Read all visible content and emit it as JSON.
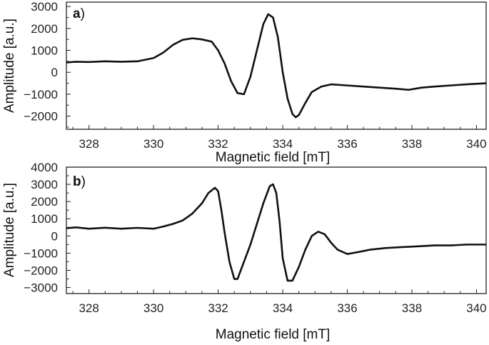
{
  "chart_data": [
    {
      "type": "line",
      "panel_label": "a",
      "xlabel": "Magnetic field [mT]",
      "ylabel": "Amplitude [a.u.]",
      "xlim": [
        327.3,
        340.3
      ],
      "ylim": [
        -2600,
        3200
      ],
      "xticks": [
        328,
        330,
        332,
        334,
        336,
        338,
        340
      ],
      "yticks": [
        -2000,
        -1000,
        0,
        1000,
        2000,
        3000
      ],
      "line_color": "#111111",
      "series": [
        {
          "x": [
            327.3,
            327.6,
            328.0,
            328.5,
            329.0,
            329.5,
            330.0,
            330.3,
            330.6,
            330.9,
            331.2,
            331.5,
            331.8,
            332.0,
            332.2,
            332.4,
            332.6,
            332.8,
            333.0,
            333.2,
            333.4,
            333.55,
            333.7,
            333.85,
            334.0,
            334.15,
            334.3,
            334.4,
            334.5,
            334.7,
            334.9,
            335.2,
            335.5,
            336.0,
            336.5,
            337.0,
            337.5,
            337.9,
            338.3,
            338.7,
            339.2,
            339.7,
            340.3
          ],
          "y": [
            450,
            480,
            470,
            500,
            480,
            500,
            650,
            900,
            1250,
            1480,
            1550,
            1500,
            1400,
            1000,
            400,
            -400,
            -950,
            -1000,
            -200,
            1000,
            2200,
            2650,
            2500,
            1600,
            0,
            -1200,
            -1900,
            -2050,
            -1950,
            -1400,
            -900,
            -650,
            -550,
            -600,
            -650,
            -700,
            -750,
            -800,
            -700,
            -650,
            -600,
            -550,
            -500
          ]
        }
      ]
    },
    {
      "type": "line",
      "panel_label": "b",
      "xlabel": "Magnetic field [mT]",
      "ylabel": "Amplitude [a.u.]",
      "xlim": [
        327.3,
        340.3
      ],
      "ylim": [
        -3350,
        4000
      ],
      "xticks": [
        328,
        330,
        332,
        334,
        336,
        338,
        340
      ],
      "yticks": [
        -3000,
        -2000,
        -1000,
        0,
        1000,
        2000,
        3000,
        4000
      ],
      "line_color": "#111111",
      "series": [
        {
          "x": [
            327.3,
            327.6,
            328.0,
            328.5,
            329.0,
            329.5,
            330.0,
            330.3,
            330.6,
            330.9,
            331.2,
            331.5,
            331.7,
            331.9,
            332.0,
            332.1,
            332.2,
            332.35,
            332.5,
            332.6,
            332.8,
            333.0,
            333.2,
            333.4,
            333.6,
            333.7,
            333.8,
            333.9,
            334.0,
            334.15,
            334.3,
            334.5,
            334.7,
            334.9,
            335.1,
            335.3,
            335.5,
            335.7,
            336.0,
            336.3,
            336.7,
            337.2,
            337.7,
            338.2,
            338.7,
            339.2,
            339.7,
            340.3
          ],
          "y": [
            450,
            500,
            420,
            480,
            420,
            470,
            420,
            550,
            700,
            900,
            1300,
            1900,
            2500,
            2800,
            2600,
            1500,
            200,
            -1500,
            -2500,
            -2500,
            -1500,
            -500,
            700,
            1900,
            2900,
            3000,
            2500,
            900,
            -1300,
            -2600,
            -2600,
            -1800,
            -800,
            0,
            250,
            100,
            -400,
            -800,
            -1050,
            -950,
            -800,
            -700,
            -650,
            -600,
            -550,
            -550,
            -500,
            -500
          ]
        }
      ]
    }
  ]
}
